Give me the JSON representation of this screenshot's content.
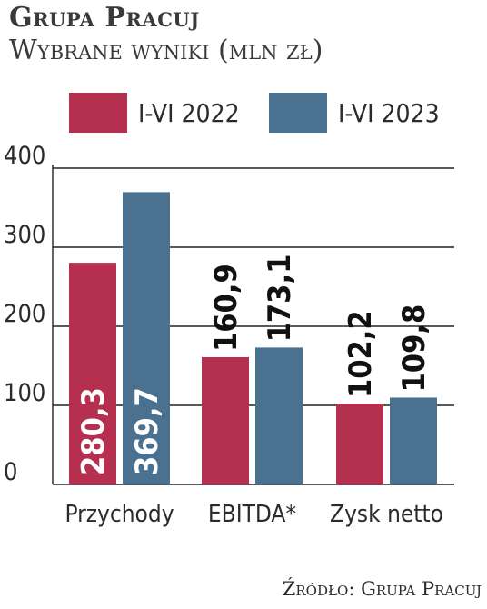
{
  "header": {
    "title": "Grupa Pracuj",
    "subtitle": "Wybrane wyniki (mln zł)"
  },
  "source": "Źródło: Grupa Pracuj",
  "colors": {
    "series_2022": "#b5304f",
    "series_2023": "#4b7190",
    "axis": "#222222",
    "text": "#2b2b2b"
  },
  "chart_data": {
    "type": "bar",
    "categories": [
      "Przychody",
      "EBITDA*",
      "Zysk netto"
    ],
    "series": [
      {
        "name": "I-VI 2022",
        "values": [
          280.3,
          160.9,
          102.2
        ],
        "labels": [
          "280,3",
          "160,9",
          "102,2"
        ]
      },
      {
        "name": "I-VI 2023",
        "values": [
          369.7,
          173.1,
          109.8
        ],
        "labels": [
          "369,7",
          "173,1",
          "109,8"
        ]
      }
    ],
    "yticks": [
      "0",
      "100",
      "200",
      "300",
      "400"
    ],
    "ylim": [
      0,
      400
    ],
    "grid": true,
    "legend": "top"
  }
}
